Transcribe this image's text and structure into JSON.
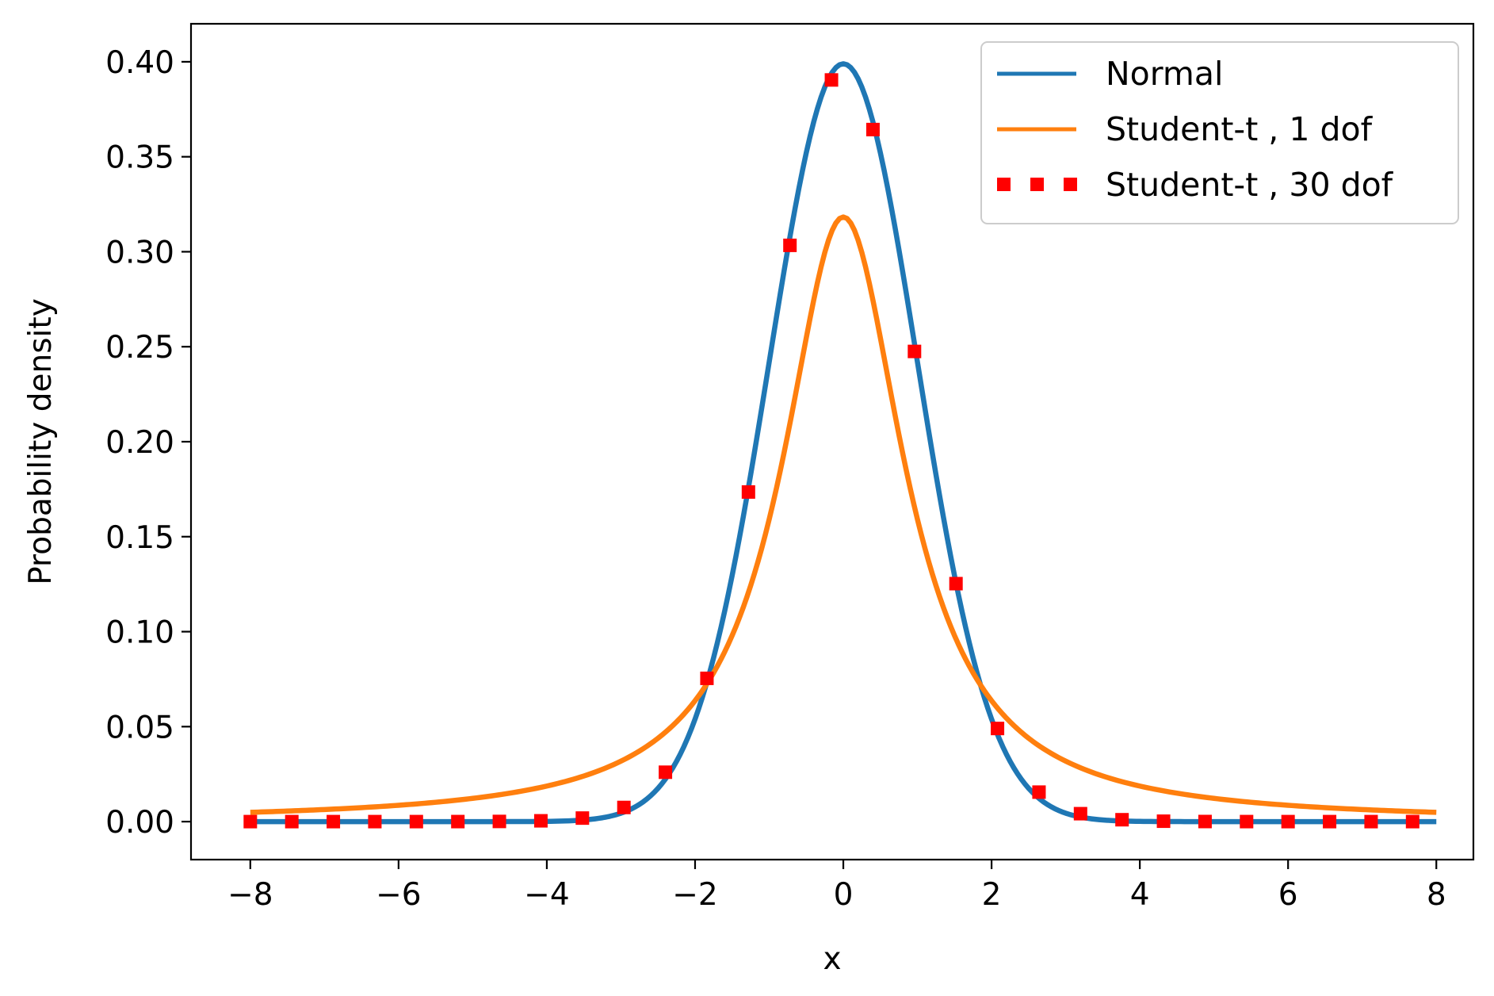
{
  "chart_data": {
    "type": "line",
    "title": "",
    "xlabel": "x",
    "ylabel": "Probability density",
    "xlim": [
      -8.8,
      8.5
    ],
    "ylim": [
      -0.02,
      0.42
    ],
    "xticks": [
      -8,
      -6,
      -4,
      -2,
      0,
      2,
      4,
      6,
      8
    ],
    "xtick_labels": [
      "−8",
      "−6",
      "−4",
      "−2",
      "0",
      "2",
      "4",
      "6",
      "8"
    ],
    "yticks": [
      0.0,
      0.05,
      0.1,
      0.15,
      0.2,
      0.25,
      0.3,
      0.35,
      0.4
    ],
    "ytick_labels": [
      "0.00",
      "0.05",
      "0.10",
      "0.15",
      "0.20",
      "0.25",
      "0.30",
      "0.35",
      "0.40"
    ],
    "grid": false,
    "legend_position": "top-right",
    "x_range": [
      -8,
      8
    ],
    "sample_step": 0.05,
    "marker_spacing": 0.56,
    "series": [
      {
        "name": "Normal",
        "distribution": "normal",
        "mean": 0,
        "sd": 1,
        "style": "solid",
        "color": "#1f77b4",
        "peak": 0.399
      },
      {
        "name": "Student-t , 1 dof",
        "distribution": "student-t",
        "dof": 1,
        "style": "solid",
        "color": "#ff7f0e",
        "peak": 0.318
      },
      {
        "name": "Student-t , 30 dof",
        "distribution": "student-t",
        "dof": 30,
        "style": "dotted",
        "color": "#ff0000",
        "peak": 0.396
      }
    ]
  }
}
